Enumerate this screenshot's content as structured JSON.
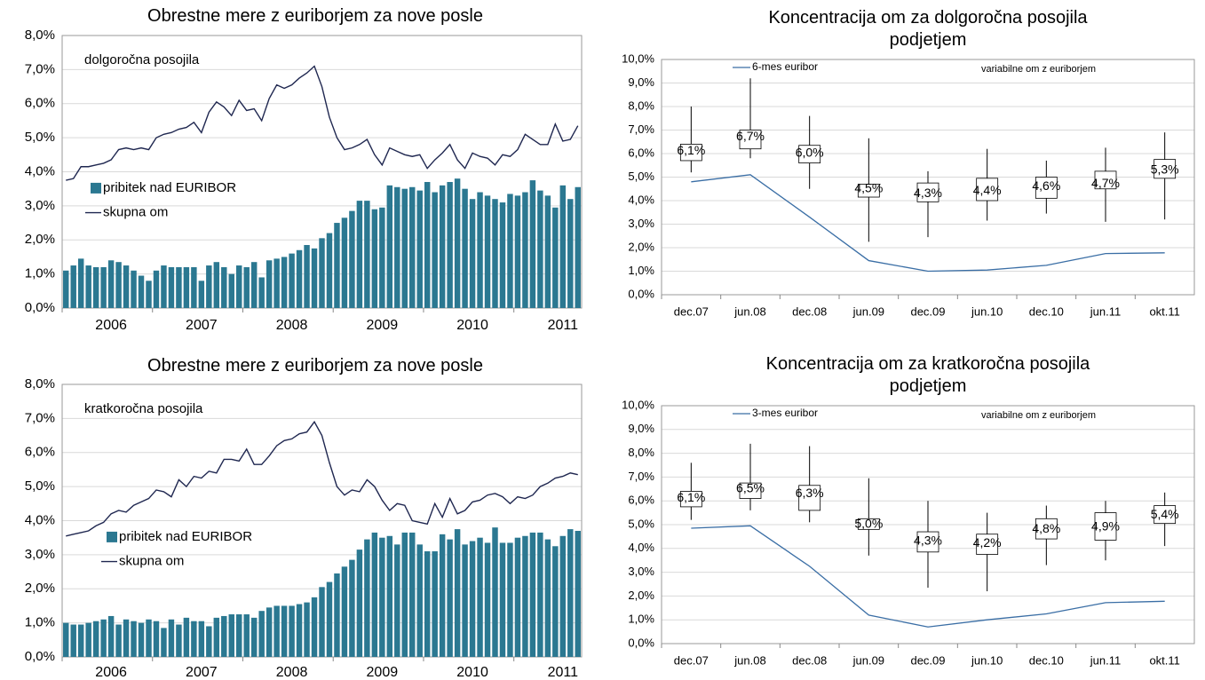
{
  "chart_data": [
    {
      "type": "bar_line",
      "title": "Obrestne mere z euriborjem za nove posle",
      "annotation": "dolgoročna posojila",
      "categories": [
        null,
        null,
        null,
        null,
        null,
        null,
        "2006",
        null,
        null,
        null,
        null,
        null,
        null,
        null,
        null,
        null,
        null,
        null,
        "2007",
        null,
        null,
        null,
        null,
        null,
        null,
        null,
        null,
        null,
        null,
        null,
        "2008",
        null,
        null,
        null,
        null,
        null,
        null,
        null,
        null,
        null,
        null,
        null,
        "2009",
        null,
        null,
        null,
        null,
        null,
        null,
        null,
        null,
        null,
        null,
        null,
        "2010",
        null,
        null,
        null,
        null,
        null,
        null,
        null,
        null,
        null,
        null,
        null,
        "2011",
        null,
        null
      ],
      "series": [
        {
          "name": "pribitek nad EURIBOR",
          "type": "bar",
          "color": "#2b7891",
          "values": [
            1.1,
            1.25,
            1.45,
            1.25,
            1.2,
            1.2,
            1.4,
            1.35,
            1.25,
            1.1,
            0.95,
            0.8,
            1.1,
            1.25,
            1.2,
            1.2,
            1.2,
            1.2,
            0.8,
            1.25,
            1.35,
            1.2,
            1.0,
            1.25,
            1.2,
            1.35,
            0.9,
            1.4,
            1.45,
            1.5,
            1.6,
            1.7,
            1.85,
            1.75,
            2.05,
            2.2,
            2.5,
            2.65,
            2.85,
            3.15,
            3.15,
            2.9,
            2.95,
            3.6,
            3.55,
            3.5,
            3.55,
            3.45,
            3.7,
            3.4,
            3.6,
            3.7,
            3.8,
            3.5,
            3.2,
            3.4,
            3.3,
            3.2,
            3.1,
            3.35,
            3.3,
            3.4,
            3.75,
            3.45,
            3.3,
            2.95,
            3.6,
            3.2,
            3.55
          ]
        },
        {
          "name": "skupna om",
          "type": "line",
          "color": "#1f2750",
          "values": [
            3.75,
            3.8,
            4.15,
            4.15,
            4.2,
            4.25,
            4.35,
            4.65,
            4.7,
            4.65,
            4.7,
            4.65,
            5.0,
            5.1,
            5.15,
            5.25,
            5.3,
            5.45,
            5.15,
            5.75,
            6.05,
            5.9,
            5.65,
            6.1,
            5.8,
            5.85,
            5.5,
            6.15,
            6.55,
            6.45,
            6.55,
            6.75,
            6.9,
            7.1,
            6.5,
            5.6,
            5.0,
            4.65,
            4.7,
            4.8,
            4.95,
            4.5,
            4.2,
            4.7,
            4.6,
            4.5,
            4.45,
            4.5,
            4.1,
            4.35,
            4.55,
            4.8,
            4.35,
            4.1,
            4.55,
            4.45,
            4.4,
            4.2,
            4.5,
            4.45,
            4.65,
            5.1,
            4.95,
            4.8,
            4.8,
            5.4,
            4.9,
            4.95,
            5.35
          ]
        }
      ],
      "ylim": [
        0,
        8
      ],
      "yticks": [
        {
          "value": 0,
          "label": "0,0%"
        },
        {
          "value": 1,
          "label": "1,0%"
        },
        {
          "value": 2,
          "label": "2,0%"
        },
        {
          "value": 3,
          "label": "3,0%"
        },
        {
          "value": 4,
          "label": "4,0%"
        },
        {
          "value": 5,
          "label": "5,0%"
        },
        {
          "value": 6,
          "label": "6,0%"
        },
        {
          "value": 7,
          "label": "7,0%"
        },
        {
          "value": 8,
          "label": "8,0%"
        }
      ],
      "grid": true
    },
    {
      "type": "boxplot",
      "title": "Koncentracija om za dolgoročna posojila podjetjem",
      "annotation": "variabilne om z euriborjem",
      "categories": [
        "dec.07",
        "jun.08",
        "dec.08",
        "jun.09",
        "dec.09",
        "jun.10",
        "dec.10",
        "jun.11",
        "okt.11"
      ],
      "boxes": {
        "values": [
          6.1,
          6.7,
          6.0,
          4.5,
          4.3,
          4.4,
          4.6,
          4.7,
          5.3
        ],
        "value_labels": [
          "6,1%",
          "6,7%",
          "6,0%",
          "4,5%",
          "4,3%",
          "4,4%",
          "4,6%",
          "4,7%",
          "5,3%"
        ],
        "low": [
          5.2,
          5.8,
          4.5,
          2.25,
          2.45,
          3.15,
          3.45,
          3.1,
          3.2
        ],
        "high": [
          8.0,
          9.2,
          7.6,
          6.65,
          5.25,
          6.2,
          5.7,
          6.25,
          6.9
        ],
        "q1": [
          5.7,
          6.2,
          5.6,
          4.15,
          3.95,
          4.0,
          4.1,
          4.5,
          4.95
        ],
        "q3": [
          6.4,
          7.0,
          6.35,
          4.7,
          4.75,
          4.95,
          5.0,
          5.25,
          5.75
        ]
      },
      "series": [
        {
          "name": "6-mes euribor",
          "color": "#3a6ea5",
          "values": [
            4.8,
            5.1,
            3.3,
            1.45,
            1.0,
            1.05,
            1.25,
            1.75,
            1.78
          ]
        }
      ],
      "ylim": [
        0,
        10
      ],
      "yticks": [
        {
          "value": 0,
          "label": "0,0%"
        },
        {
          "value": 1,
          "label": "1,0%"
        },
        {
          "value": 2,
          "label": "2,0%"
        },
        {
          "value": 3,
          "label": "3,0%"
        },
        {
          "value": 4,
          "label": "4,0%"
        },
        {
          "value": 5,
          "label": "5,0%"
        },
        {
          "value": 6,
          "label": "6,0%"
        },
        {
          "value": 7,
          "label": "7,0%"
        },
        {
          "value": 8,
          "label": "8,0%"
        },
        {
          "value": 9,
          "label": "9,0%"
        },
        {
          "value": 10,
          "label": "10,0%"
        }
      ],
      "grid": true
    },
    {
      "type": "bar_line",
      "title": "Obrestne mere z euriborjem za nove posle",
      "annotation": "kratkoročna posojila",
      "categories": [
        null,
        null,
        null,
        null,
        null,
        null,
        "2006",
        null,
        null,
        null,
        null,
        null,
        null,
        null,
        null,
        null,
        null,
        null,
        "2007",
        null,
        null,
        null,
        null,
        null,
        null,
        null,
        null,
        null,
        null,
        null,
        "2008",
        null,
        null,
        null,
        null,
        null,
        null,
        null,
        null,
        null,
        null,
        null,
        "2009",
        null,
        null,
        null,
        null,
        null,
        null,
        null,
        null,
        null,
        null,
        null,
        "2010",
        null,
        null,
        null,
        null,
        null,
        null,
        null,
        null,
        null,
        null,
        null,
        "2011",
        null,
        null
      ],
      "series": [
        {
          "name": "pribitek nad EURIBOR",
          "type": "bar",
          "color": "#2b7891",
          "values": [
            1.0,
            0.95,
            0.95,
            1.0,
            1.05,
            1.1,
            1.2,
            0.95,
            1.1,
            1.05,
            1.0,
            1.1,
            1.05,
            0.85,
            1.1,
            0.95,
            1.15,
            1.05,
            1.05,
            0.9,
            1.15,
            1.2,
            1.25,
            1.25,
            1.25,
            1.15,
            1.35,
            1.45,
            1.5,
            1.5,
            1.5,
            1.55,
            1.6,
            1.75,
            2.05,
            2.2,
            2.45,
            2.65,
            2.85,
            3.15,
            3.45,
            3.65,
            3.5,
            3.55,
            3.3,
            3.65,
            3.65,
            3.3,
            3.1,
            3.1,
            3.6,
            3.45,
            3.75,
            3.3,
            3.4,
            3.5,
            3.35,
            3.8,
            3.35,
            3.35,
            3.5,
            3.55,
            3.65,
            3.65,
            3.45,
            3.25,
            3.55,
            3.75,
            3.7
          ]
        },
        {
          "name": "skupna om",
          "type": "line",
          "color": "#1f2750",
          "values": [
            3.55,
            3.6,
            3.65,
            3.7,
            3.85,
            3.95,
            4.2,
            4.3,
            4.25,
            4.45,
            4.55,
            4.65,
            4.9,
            4.85,
            4.7,
            5.2,
            5.0,
            5.3,
            5.25,
            5.45,
            5.4,
            5.8,
            5.8,
            5.75,
            6.1,
            5.65,
            5.65,
            5.9,
            6.2,
            6.35,
            6.4,
            6.55,
            6.6,
            6.9,
            6.5,
            5.7,
            5.0,
            4.75,
            4.9,
            4.85,
            5.2,
            5.0,
            4.6,
            4.3,
            4.5,
            4.45,
            4.0,
            3.95,
            3.9,
            4.5,
            4.1,
            4.65,
            4.2,
            4.3,
            4.55,
            4.6,
            4.75,
            4.8,
            4.7,
            4.5,
            4.7,
            4.65,
            4.75,
            5.0,
            5.1,
            5.25,
            5.3,
            5.4,
            5.35
          ]
        }
      ],
      "ylim": [
        0,
        8
      ],
      "yticks": [
        {
          "value": 0,
          "label": "0,0%"
        },
        {
          "value": 1,
          "label": "1,0%"
        },
        {
          "value": 2,
          "label": "2,0%"
        },
        {
          "value": 3,
          "label": "3,0%"
        },
        {
          "value": 4,
          "label": "4,0%"
        },
        {
          "value": 5,
          "label": "5,0%"
        },
        {
          "value": 6,
          "label": "6,0%"
        },
        {
          "value": 7,
          "label": "7,0%"
        },
        {
          "value": 8,
          "label": "8,0%"
        }
      ],
      "grid": true
    },
    {
      "type": "boxplot",
      "title": "Koncentracija om za kratkoročna posojila podjetjem",
      "annotation": "variabilne om z euriborjem",
      "categories": [
        "dec.07",
        "jun.08",
        "dec.08",
        "jun.09",
        "dec.09",
        "jun.10",
        "dec.10",
        "jun.11",
        "okt.11"
      ],
      "boxes": {
        "values": [
          6.1,
          6.5,
          6.3,
          5.0,
          4.3,
          4.2,
          4.8,
          4.9,
          5.4
        ],
        "value_labels": [
          "6,1%",
          "6,5%",
          "6,3%",
          "5,0%",
          "4,3%",
          "4,2%",
          "4,8%",
          "4,9%",
          "5,4%"
        ],
        "low": [
          5.2,
          5.6,
          5.1,
          3.7,
          2.35,
          2.2,
          3.3,
          3.5,
          4.1
        ],
        "high": [
          7.6,
          8.4,
          8.3,
          6.95,
          6.0,
          5.5,
          5.8,
          6.0,
          6.35
        ],
        "q1": [
          5.75,
          6.1,
          5.6,
          4.8,
          3.85,
          3.75,
          4.4,
          4.35,
          5.05
        ],
        "q3": [
          6.4,
          6.75,
          6.65,
          5.25,
          4.7,
          4.6,
          5.25,
          5.5,
          5.8
        ]
      },
      "series": [
        {
          "name": "3-mes euribor",
          "color": "#3a6ea5",
          "values": [
            4.85,
            4.95,
            3.25,
            1.2,
            0.7,
            1.0,
            1.25,
            1.72,
            1.78
          ]
        }
      ],
      "ylim": [
        0,
        10
      ],
      "yticks": [
        {
          "value": 0,
          "label": "0,0%"
        },
        {
          "value": 1,
          "label": "1,0%"
        },
        {
          "value": 2,
          "label": "2,0%"
        },
        {
          "value": 3,
          "label": "3,0%"
        },
        {
          "value": 4,
          "label": "4,0%"
        },
        {
          "value": 5,
          "label": "5,0%"
        },
        {
          "value": 6,
          "label": "6,0%"
        },
        {
          "value": 7,
          "label": "7,0%"
        },
        {
          "value": 8,
          "label": "8,0%"
        },
        {
          "value": 9,
          "label": "9,0%"
        },
        {
          "value": 10,
          "label": "10,0%"
        }
      ],
      "grid": true
    }
  ]
}
